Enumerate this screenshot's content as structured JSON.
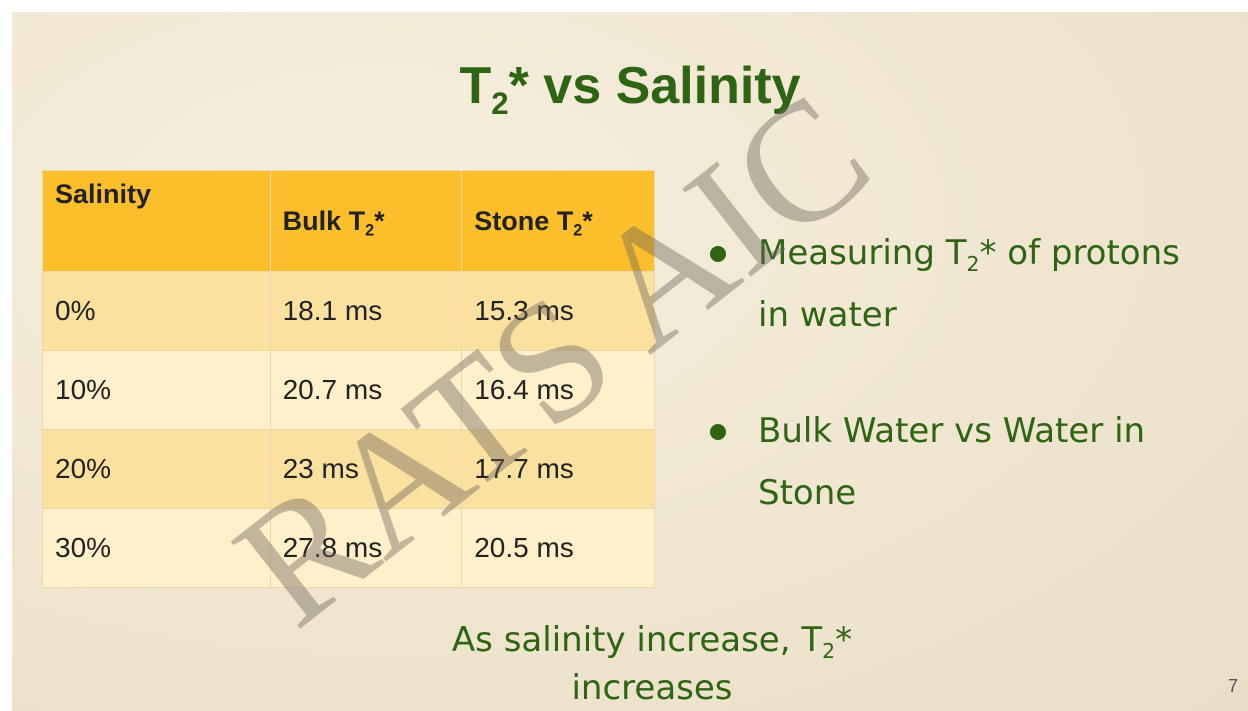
{
  "title": [
    "T",
    "2",
    "* vs Salinity"
  ],
  "table": {
    "header": [
      [
        "Salinity"
      ],
      [
        "Bulk T",
        "2",
        "*"
      ],
      [
        "Stone T",
        "2",
        "*"
      ]
    ],
    "rows": [
      [
        "0%",
        "18.1 ms",
        "15.3 ms"
      ],
      [
        "10%",
        "20.7 ms",
        "16.4 ms"
      ],
      [
        "20%",
        "23 ms",
        "17.7 ms"
      ],
      [
        "30%",
        "27.8 ms",
        "20.5 ms"
      ]
    ]
  },
  "bullets": [
    [
      "Measuring T",
      "2",
      "* of protons in water"
    ],
    [
      "Bulk Water vs Water in Stone"
    ]
  ],
  "conclusion": [
    "As salinity increase, T",
    "2",
    "* increases"
  ],
  "page_number": "7",
  "watermark": "RATS AIC"
}
